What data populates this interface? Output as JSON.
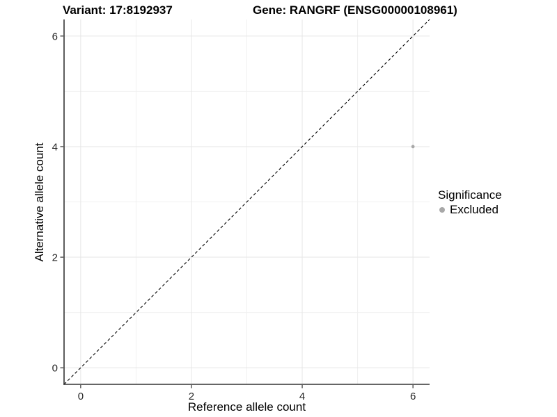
{
  "chart_data": {
    "type": "scatter",
    "titles": {
      "left": "Variant: 17:8192937",
      "right": "Gene: RANGRF (ENSG00000108961)"
    },
    "xlabel": "Reference allele count",
    "ylabel": "Alternative allele count",
    "xlim": [
      -0.3,
      6.3
    ],
    "ylim": [
      -0.3,
      6.3
    ],
    "x_ticks": [
      0,
      2,
      4,
      6
    ],
    "y_ticks": [
      0,
      2,
      4,
      6
    ],
    "x_minor_ticks": [
      1,
      3,
      5
    ],
    "y_minor_ticks": [
      1,
      3,
      5
    ],
    "grid": "on",
    "reference_line": {
      "kind": "y=x",
      "style": "dashed",
      "color": "#000000",
      "from": [
        -0.3,
        -0.3
      ],
      "to": [
        6.3,
        6.3
      ]
    },
    "series": [
      {
        "name": "Excluded",
        "color": "#a8a8a8",
        "marker": "circle",
        "points": [
          [
            6,
            4
          ]
        ]
      }
    ],
    "legend": {
      "position": "right",
      "title": "Significance",
      "entries": [
        {
          "label": "Excluded",
          "color": "#a8a8a8"
        }
      ]
    },
    "colors": {
      "background": "#ffffff",
      "grid_major": "#e6e6e6",
      "grid_minor": "#f0f0f0",
      "axis": "#333333",
      "tick_label": "#262626",
      "text": "#000000"
    }
  }
}
